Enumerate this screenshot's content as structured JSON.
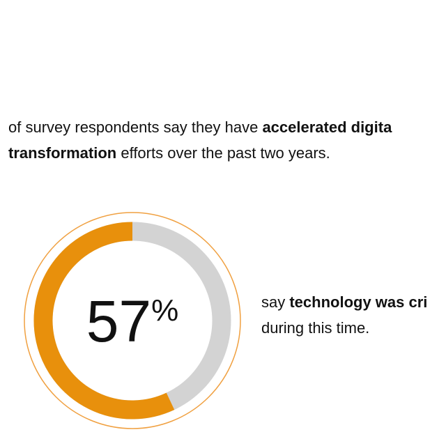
{
  "intro": {
    "lines": [
      [
        {
          "text": "of survey respondents say they have ",
          "bold": false
        },
        {
          "text": "accelerated digita",
          "bold": true
        }
      ],
      [
        {
          "text": "transformation",
          "bold": true
        },
        {
          "text": " efforts over the past two years.",
          "bold": false
        }
      ]
    ]
  },
  "chart_data": {
    "type": "donut",
    "values": [
      57
    ],
    "value_labels": [
      "57"
    ],
    "unit": "%",
    "color": "#e8900c",
    "track_color": "#d3d3d3",
    "ring_color": "#f0a040",
    "max": 100
  },
  "caption": {
    "lines": [
      [
        {
          "text": "say ",
          "bold": false
        },
        {
          "text": "technology was cri",
          "bold": true
        }
      ],
      [
        {
          "text": "during this time.",
          "bold": false
        }
      ]
    ]
  }
}
